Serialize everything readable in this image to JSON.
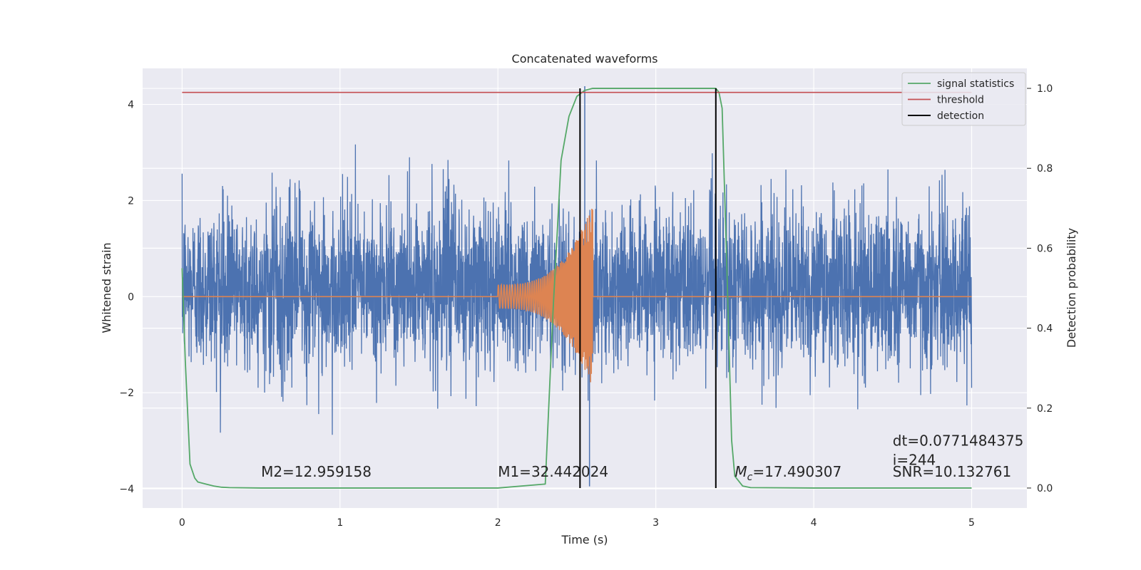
{
  "chart_data": {
    "type": "line",
    "title": "Concatenated waveforms",
    "xlabel": "Time (s)",
    "ylabel": "Whitened strain",
    "y2label": "Detection probability",
    "xlim": [
      -0.25,
      5.35
    ],
    "ylim": [
      -4.4,
      4.75
    ],
    "y2lim": [
      -0.05,
      1.05
    ],
    "x_ticks": [
      0,
      1,
      2,
      3,
      4,
      5
    ],
    "y_ticks": [
      -4,
      -2,
      0,
      2,
      4
    ],
    "y2_ticks": [
      0.0,
      0.2,
      0.4,
      0.6,
      0.8,
      1.0
    ],
    "grid": true,
    "legend_position": "top-right",
    "legend": [
      {
        "name": "signal statistics",
        "color": "#55a868"
      },
      {
        "name": "threshold",
        "color": "#c44e52"
      },
      {
        "name": "detection",
        "color": "#000000"
      }
    ],
    "series": [
      {
        "kind": "noise",
        "color": "#4c72b0",
        "x_range": [
          0,
          5
        ],
        "typical_band": [
          -0.6,
          1.0
        ],
        "peak_range": [
          -3.1,
          3.2
        ],
        "max_spike": {
          "x": 2.55,
          "y": 4.38
        },
        "min_spike": {
          "x": 2.58,
          "y": -3.95
        }
      },
      {
        "kind": "chirp",
        "color": "#dd8452",
        "x_range": [
          0,
          5
        ],
        "chirp_start": 2.0,
        "chirp_end": 2.6,
        "amp_start": 0.25,
        "amp_peak": 1.9
      },
      {
        "name": "signal statistics",
        "color": "#55a868",
        "axis": "right",
        "x": [
          0.0,
          0.02,
          0.05,
          0.08,
          0.1,
          0.15,
          0.2,
          0.25,
          0.3,
          0.5,
          1.0,
          2.0,
          2.3,
          2.35,
          2.4,
          2.45,
          2.5,
          2.55,
          2.6,
          3.0,
          3.38,
          3.4,
          3.42,
          3.45,
          3.48,
          3.5,
          3.55,
          3.6,
          4.0,
          5.0
        ],
        "y": [
          0.55,
          0.32,
          0.06,
          0.025,
          0.015,
          0.01,
          0.005,
          0.002,
          0.001,
          0.0,
          0.0,
          0.0,
          0.01,
          0.45,
          0.82,
          0.93,
          0.98,
          0.995,
          1.0,
          1.0,
          1.0,
          0.99,
          0.95,
          0.55,
          0.12,
          0.03,
          0.005,
          0.001,
          0.0,
          0.0
        ]
      },
      {
        "name": "threshold",
        "color": "#c44e52",
        "axis": "right",
        "x": [
          0,
          5
        ],
        "y": [
          0.99,
          0.99
        ]
      },
      {
        "name": "detection",
        "color": "#000000",
        "axis": "right",
        "x_positions": [
          2.52,
          3.38
        ],
        "y": [
          0.0,
          1.0
        ]
      }
    ],
    "annotations": [
      {
        "text": "M2=12.959158",
        "x": 0.5,
        "y": -3.75
      },
      {
        "text": "M1=32.442024",
        "x": 2.0,
        "y": -3.75
      },
      {
        "prefix": "M",
        "sub": "c",
        "suffix": "=17.490307",
        "x": 3.5,
        "y": -3.75
      },
      {
        "text": "dt=0.0771484375",
        "x": 4.5,
        "y": -3.1
      },
      {
        "text": " i=244",
        "x": 4.5,
        "y": -3.5
      },
      {
        "text": "SNR=10.132761",
        "x": 4.5,
        "y": -3.75
      }
    ]
  }
}
